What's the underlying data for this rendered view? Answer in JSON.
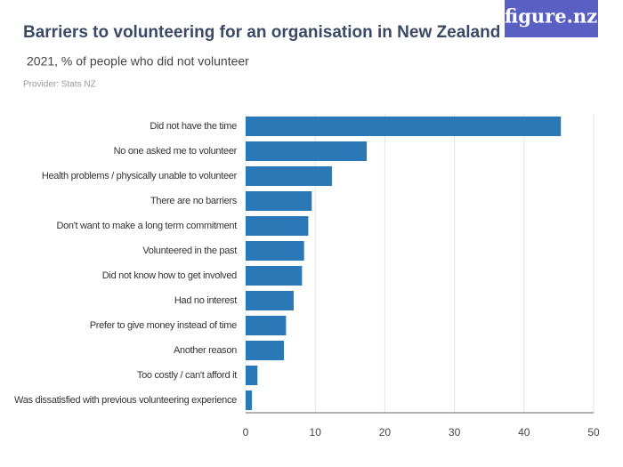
{
  "logo": "figure.nz",
  "chart_data": {
    "type": "bar",
    "orientation": "horizontal",
    "title": "Barriers to volunteering for an organisation in New Zealand",
    "subtitle": "2021, % of people who did not volunteer",
    "provider": "Provider: Stats NZ",
    "categories": [
      "Did not have the time",
      "No one asked me to volunteer",
      "Health problems / physically unable to volunteer",
      "There are no barriers",
      "Don't want to make a long term commitment",
      "Volunteered in the past",
      "Did not know how to get involved",
      "Had no interest",
      "Prefer to give money instead of time",
      "Another reason",
      "Too costly / can't afford it",
      "Was dissatisfied with previous volunteering experience"
    ],
    "values": [
      45.3,
      17.4,
      12.4,
      9.5,
      9.0,
      8.4,
      8.1,
      6.9,
      5.8,
      5.5,
      1.7,
      0.9
    ],
    "color": "#2a78b5",
    "xlim": [
      0,
      50
    ],
    "xticks": [
      0,
      10,
      20,
      30,
      40,
      50
    ],
    "grid": true
  }
}
